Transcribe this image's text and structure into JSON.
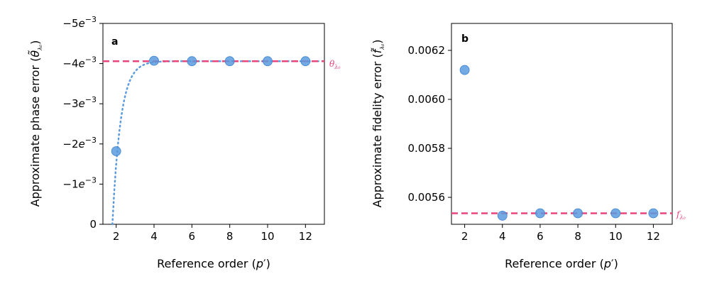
{
  "colors": {
    "points": "#5b9bde",
    "reference": "#e8457a",
    "fit": "#5b9bde"
  },
  "chart_data": [
    {
      "type": "scatter",
      "panel_label": "a",
      "xlabel": "Reference order (p′)",
      "ylabel": "Approximate phase error (θ̃λ₀)",
      "xlim": [
        1.3,
        13.0
      ],
      "ylim": [
        0,
        -0.005
      ],
      "y_inverted": true,
      "x_ticks": [
        2,
        4,
        6,
        8,
        10,
        12
      ],
      "y_ticks": [
        0,
        -0.001,
        -0.002,
        -0.003,
        -0.004,
        -0.005
      ],
      "y_tick_labels": [
        "0",
        "−1e−3",
        "−2e−3",
        "−3e−3",
        "−4e−3",
        "−5e−3"
      ],
      "points": {
        "x": [
          2,
          4,
          6,
          8,
          10,
          12
        ],
        "y": [
          -0.00182,
          -0.00407,
          -0.00406,
          -0.00406,
          -0.00406,
          -0.00406
        ]
      },
      "reference_line": {
        "y": -0.00406,
        "label": "θλ₀",
        "style": "dashed"
      },
      "fit_curve": {
        "style": "dotted",
        "x_start": 1.8,
        "asymptote": -0.00406,
        "note": "saturating"
      }
    },
    {
      "type": "scatter",
      "panel_label": "b",
      "xlabel": "Reference order (p′)",
      "ylabel": "Approximate fidelity error (f̃λ₀)",
      "xlim": [
        1.3,
        13.0
      ],
      "ylim": [
        0.00549,
        0.00631
      ],
      "x_ticks": [
        2,
        4,
        6,
        8,
        10,
        12
      ],
      "y_ticks": [
        0.0056,
        0.0058,
        0.006,
        0.0062
      ],
      "y_tick_labels": [
        "0.0056",
        "0.0058",
        "0.0060",
        "0.0062"
      ],
      "points": {
        "x": [
          2,
          4,
          6,
          8,
          10,
          12
        ],
        "y": [
          0.00612,
          0.005525,
          0.005535,
          0.005535,
          0.005535,
          0.005535
        ]
      },
      "reference_line": {
        "y": 0.005535,
        "label": "fλ₀",
        "style": "dashed"
      }
    }
  ]
}
